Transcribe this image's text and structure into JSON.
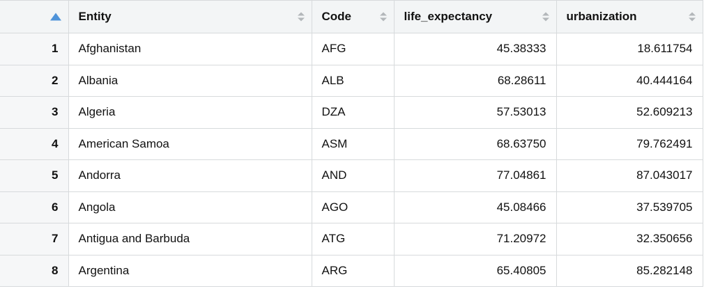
{
  "table": {
    "columns": [
      {
        "id": "row_number",
        "label": "",
        "sort": "ascending",
        "align": "right"
      },
      {
        "id": "entity",
        "label": "Entity",
        "sort": "none",
        "align": "left"
      },
      {
        "id": "code",
        "label": "Code",
        "sort": "none",
        "align": "left"
      },
      {
        "id": "life_expectancy",
        "label": "life_expectancy",
        "sort": "none",
        "align": "right"
      },
      {
        "id": "urbanization",
        "label": "urbanization",
        "sort": "none",
        "align": "right"
      }
    ],
    "rows": [
      [
        "1",
        "Afghanistan",
        "AFG",
        "45.38333",
        "18.611754"
      ],
      [
        "2",
        "Albania",
        "ALB",
        "68.28611",
        "40.444164"
      ],
      [
        "3",
        "Algeria",
        "DZA",
        "57.53013",
        "52.609213"
      ],
      [
        "4",
        "American Samoa",
        "ASM",
        "68.63750",
        "79.762491"
      ],
      [
        "5",
        "Andorra",
        "AND",
        "77.04861",
        "87.043017"
      ],
      [
        "6",
        "Angola",
        "AGO",
        "45.08466",
        "37.539705"
      ],
      [
        "7",
        "Antigua and Barbuda",
        "ATG",
        "71.20972",
        "32.350656"
      ],
      [
        "8",
        "Argentina",
        "ARG",
        "65.40805",
        "85.282148"
      ]
    ]
  },
  "icons": {
    "sort_ascending": "sort-ascending-icon",
    "sort_unsorted": "sort-toggle-icon"
  },
  "colors": {
    "header_bg": "#f3f5f6",
    "row_number_bg": "#f6f7f8",
    "border": "#d7dadc",
    "sort_active_arrow": "#4f93d9",
    "sort_inactive_arrow": "#b3b7ba",
    "text": "#111111"
  }
}
